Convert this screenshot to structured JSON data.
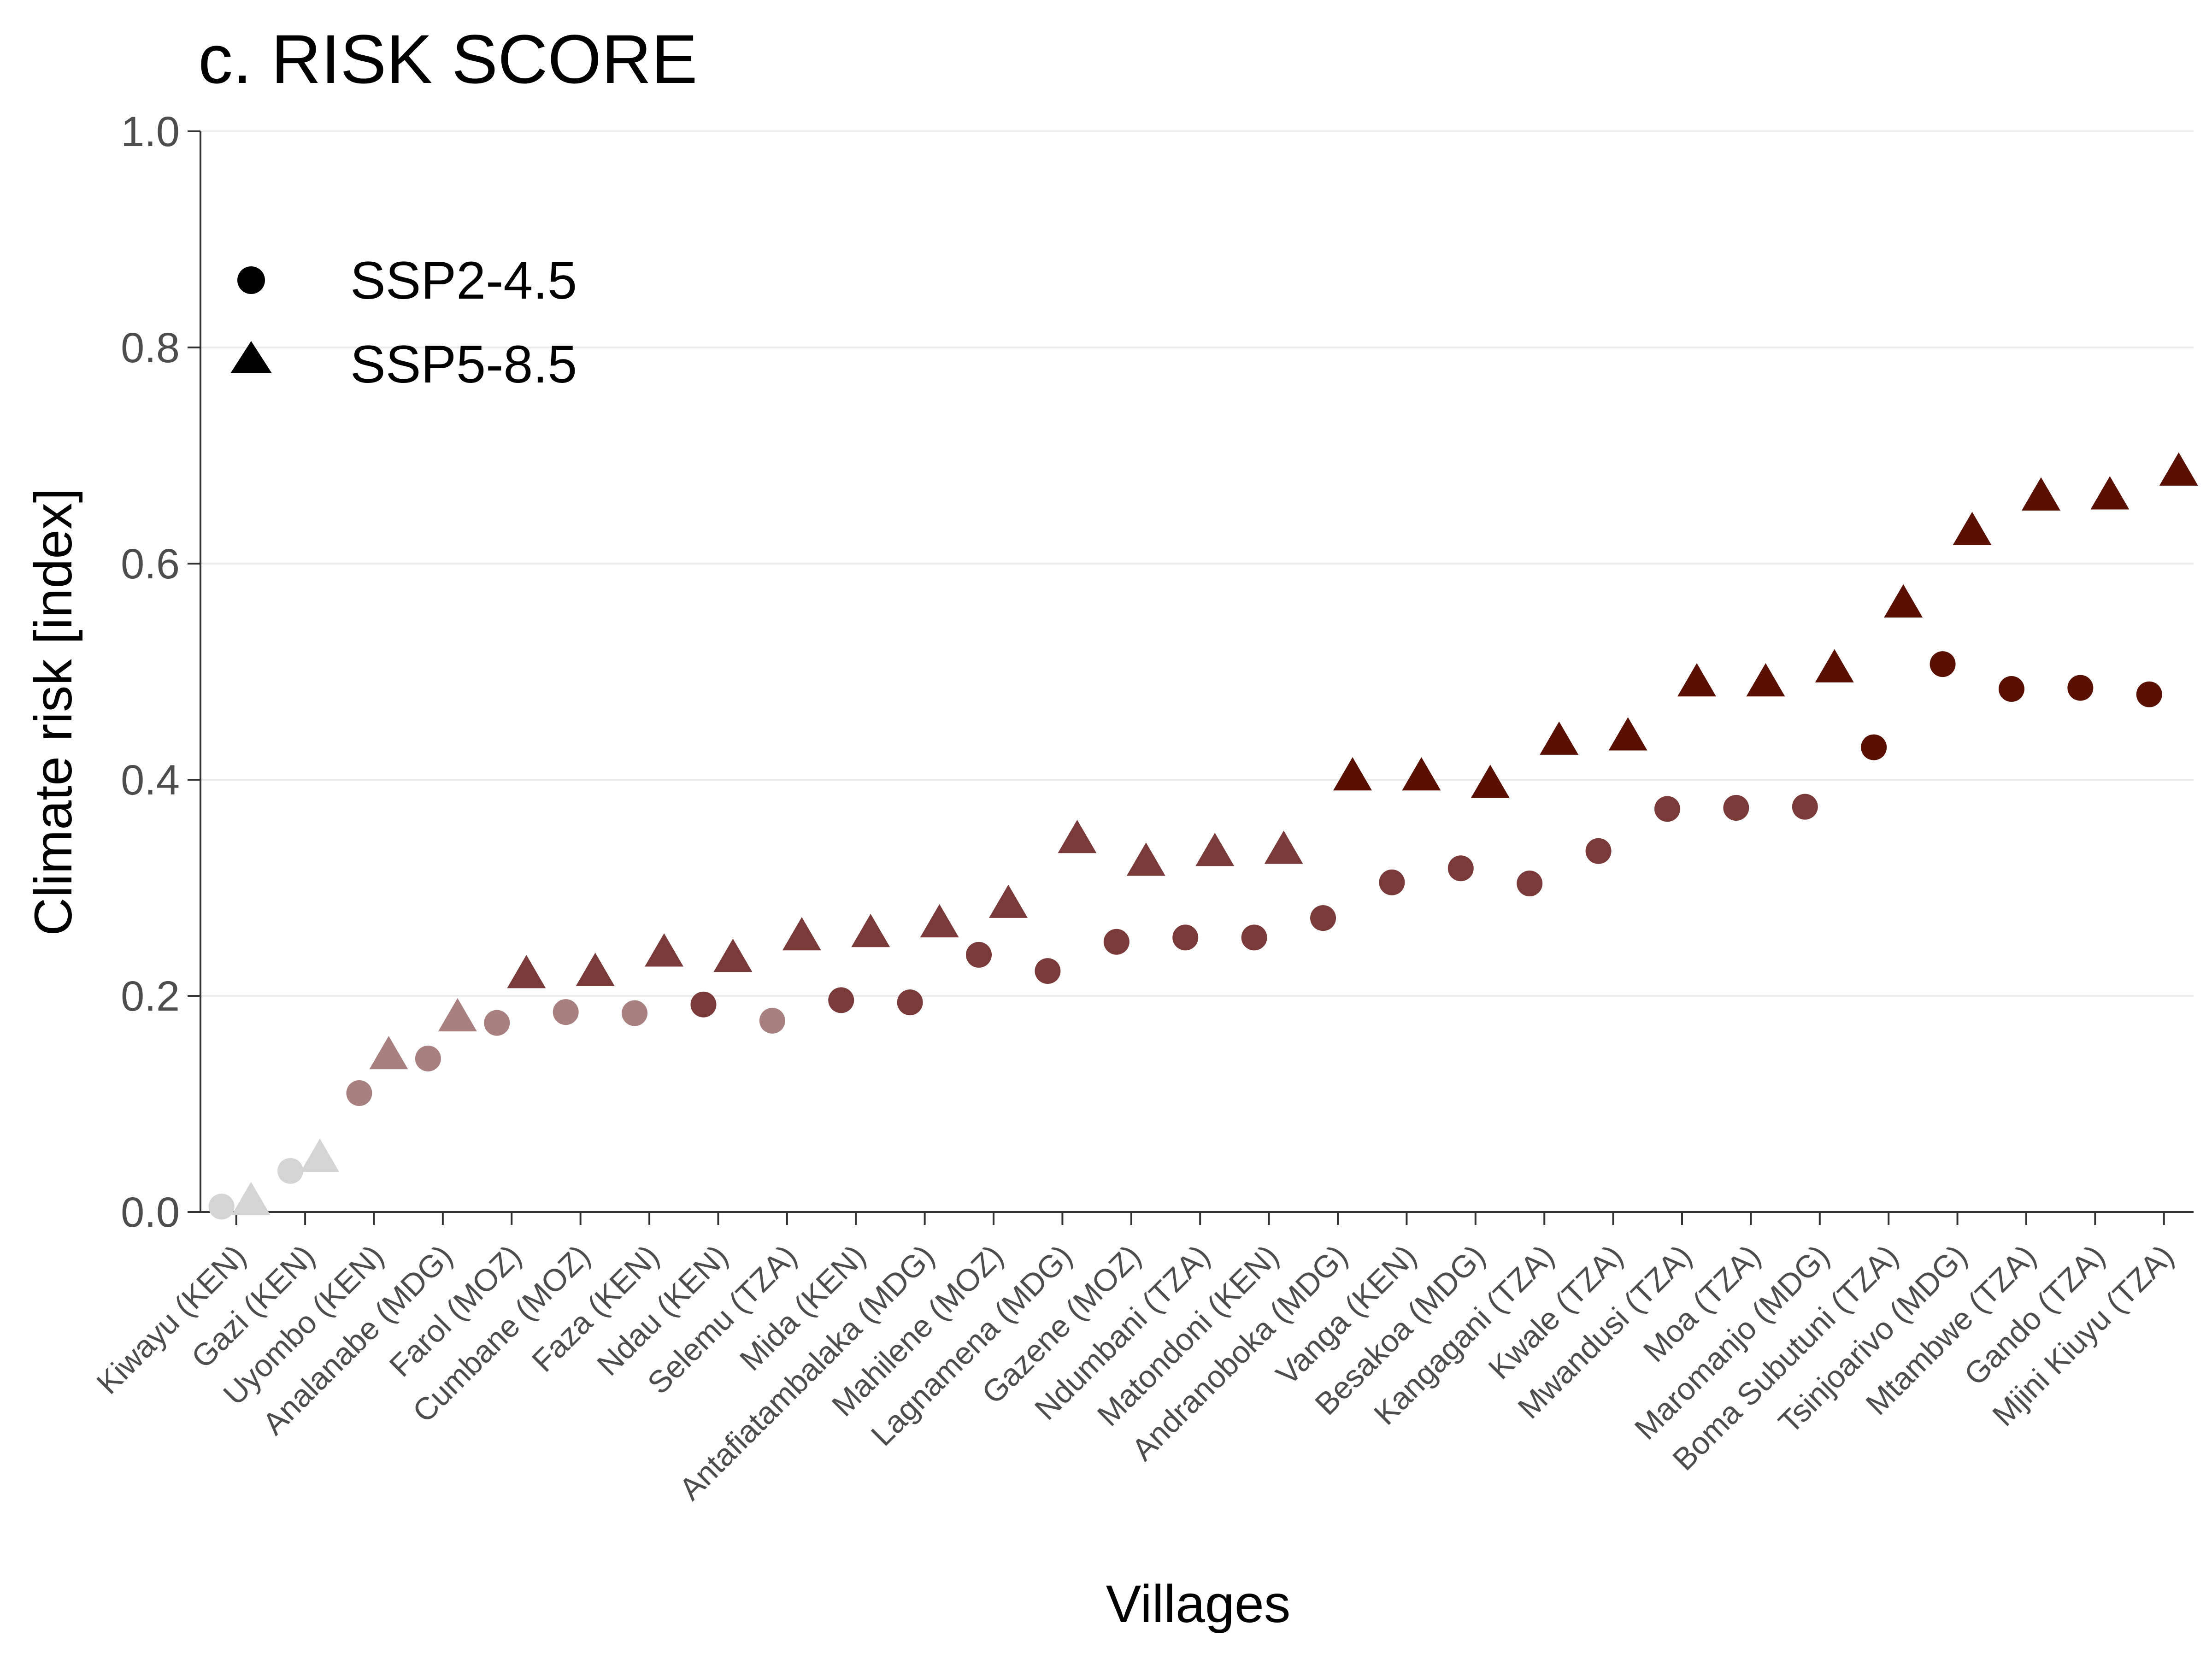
{
  "chart_data": {
    "type": "scatter",
    "title": "c. RISK SCORE",
    "xlabel": "Villages",
    "ylabel": "Climate risk [index]",
    "ylim": [
      0,
      1
    ],
    "yticks": [
      "0.0",
      "0.2",
      "0.4",
      "0.6",
      "0.8",
      "1.0"
    ],
    "grid": "horizontal",
    "legend_position": "top-left",
    "categories": [
      "Kiwayu (KEN)",
      "Gazi (KEN)",
      "Uyombo (KEN)",
      "Analanabe (MDG)",
      "Farol (MOZ)",
      "Cumbane (MOZ)",
      "Faza (KEN)",
      "Ndau (KEN)",
      "Selemu (TZA)",
      "Mida (KEN)",
      "Antafiatambalaka (MDG)",
      "Mahilene (MOZ)",
      "Lagnamena (MDG)",
      "Gazene (MOZ)",
      "Ndumbani (TZA)",
      "Matondoni (KEN)",
      "Andranoboka (MDG)",
      "Vanga (KEN)",
      "Besakoa (MDG)",
      "Kangagani (TZA)",
      "Kwale (TZA)",
      "Mwandusi (TZA)",
      "Moa (TZA)",
      "Maromanjo (MDG)",
      "Boma Subutuni (TZA)",
      "Tsinjoarivo (MDG)",
      "Mtambwe (TZA)",
      "Gando (TZA)",
      "Mjini Kiuyu (TZA)"
    ],
    "series": [
      {
        "name": "SSP2-4.5",
        "marker": "circle",
        "values": [
          0.005,
          0.038,
          0.11,
          0.142,
          0.175,
          0.185,
          0.184,
          0.192,
          0.177,
          0.196,
          0.194,
          0.238,
          0.223,
          0.25,
          0.254,
          0.254,
          0.272,
          0.305,
          0.318,
          0.304,
          0.334,
          0.373,
          0.374,
          0.375,
          0.43,
          0.507,
          0.484,
          0.485,
          0.479
        ]
      },
      {
        "name": "SSP5-8.5",
        "marker": "triangle",
        "values": [
          0.01,
          0.05,
          0.145,
          0.18,
          0.22,
          0.222,
          0.24,
          0.235,
          0.255,
          0.258,
          0.267,
          0.285,
          0.345,
          0.324,
          0.333,
          0.335,
          0.403,
          0.403,
          0.396,
          0.436,
          0.44,
          0.49,
          0.49,
          0.503,
          0.563,
          0.63,
          0.662,
          0.663,
          0.685
        ]
      }
    ],
    "point_colors": [
      "#d4d4d4",
      "#d4d4d4",
      "#a88080",
      "#a88080",
      "#a88080",
      "#a88080",
      "#a88080",
      "#7a3a3a",
      "#a88080",
      "#7a3a3a",
      "#7a3a3a",
      "#7a3a3a",
      "#7a3a3a",
      "#7a3a3a",
      "#7a3a3a",
      "#7a3a3a",
      "#7a3a3a",
      "#7a3a3a",
      "#7a3a3a",
      "#7a3a3a",
      "#7a3a3a",
      "#7a3a3a",
      "#7a3a3a",
      "#7a3a3a",
      "#5a1000",
      "#5a1000",
      "#5a1000",
      "#5a1000",
      "#5a1000"
    ],
    "triangle_colors": [
      "#d4d4d4",
      "#d4d4d4",
      "#a88080",
      "#a88080",
      "#7a3a3a",
      "#7a3a3a",
      "#7a3a3a",
      "#7a3a3a",
      "#7a3a3a",
      "#7a3a3a",
      "#7a3a3a",
      "#7a3a3a",
      "#7a3a3a",
      "#7a3a3a",
      "#7a3a3a",
      "#7a3a3a",
      "#5a1000",
      "#5a1000",
      "#5a1000",
      "#5a1000",
      "#5a1000",
      "#5a1000",
      "#5a1000",
      "#5a1000",
      "#5a1000",
      "#5a1000",
      "#5a1000",
      "#5a1000",
      "#5a1000"
    ],
    "legend_color": "#000000"
  }
}
